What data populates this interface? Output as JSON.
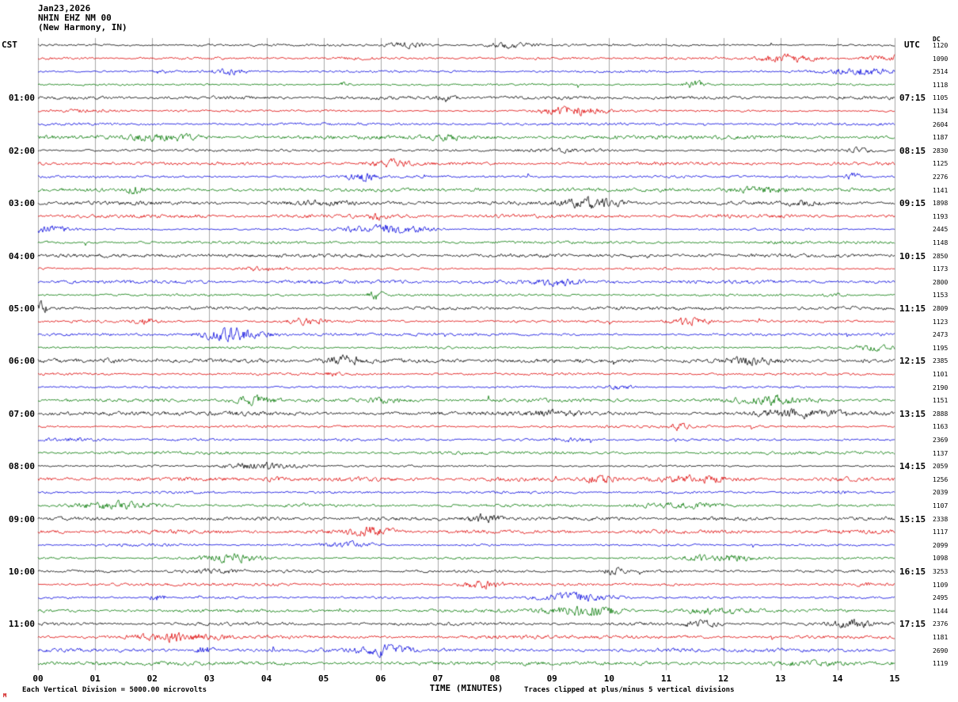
{
  "header": {
    "date": "Jan23,2026",
    "station": "NHIN EHZ NM 00",
    "location": "(New Harmony, IN)"
  },
  "axes": {
    "left_label": "CST",
    "right_label": "UTC",
    "dc_label": "DC",
    "x_axis_title": "TIME (MINUTES)",
    "x_ticks": [
      "00",
      "01",
      "02",
      "03",
      "04",
      "05",
      "06",
      "07",
      "08",
      "09",
      "10",
      "11",
      "12",
      "13",
      "14",
      "15"
    ]
  },
  "footer": {
    "left_note": "Each Vertical Division = 5000.00 microvolts",
    "right_note": "Traces clipped at plus/minus 5 vertical divisions",
    "corner_mark": "M"
  },
  "chart_data": {
    "type": "line",
    "subtype": "seismogram_helicorder",
    "title": "NHIN EHZ NM 00 (New Harmony, IN) Jan23,2026",
    "xlabel": "TIME (MINUTES)",
    "x_range_minutes": [
      0,
      15
    ],
    "minutes_per_trace": 15,
    "traces_per_hour": 4,
    "trace_count": 48,
    "grid": "vertical-minute-lines",
    "trace_color_cycle": [
      "#000000",
      "#dd0000",
      "#0000dd",
      "#007700"
    ],
    "vertical_division_microvolts": 5000.0,
    "clip_divisions": 5,
    "hour_labels": [
      {
        "cst": "01:00",
        "utc": "07:15",
        "trace_index": 4
      },
      {
        "cst": "02:00",
        "utc": "08:15",
        "trace_index": 8
      },
      {
        "cst": "03:00",
        "utc": "09:15",
        "trace_index": 12
      },
      {
        "cst": "04:00",
        "utc": "10:15",
        "trace_index": 16
      },
      {
        "cst": "05:00",
        "utc": "11:15",
        "trace_index": 20
      },
      {
        "cst": "06:00",
        "utc": "12:15",
        "trace_index": 24
      },
      {
        "cst": "07:00",
        "utc": "13:15",
        "trace_index": 28
      },
      {
        "cst": "08:00",
        "utc": "14:15",
        "trace_index": 32
      },
      {
        "cst": "09:00",
        "utc": "15:15",
        "trace_index": 36
      },
      {
        "cst": "10:00",
        "utc": "16:15",
        "trace_index": 40
      },
      {
        "cst": "11:00",
        "utc": "17:15",
        "trace_index": 44
      }
    ],
    "dc_values": [
      "1120",
      "1090",
      "2514",
      "1118",
      "1105",
      "1134",
      "2604",
      "1187",
      "2830",
      "1125",
      "2276",
      "1141",
      "1898",
      "1193",
      "2445",
      "1148",
      "2850",
      "1173",
      "2800",
      "1153",
      "2809",
      "1123",
      "2473",
      "1195",
      "2385",
      "1101",
      "2190",
      "1151",
      "2888",
      "1163",
      "2369",
      "1137",
      "2059",
      "1256",
      "2039",
      "1107",
      "2338",
      "1117",
      "2099",
      "1098",
      "3253",
      "1109",
      "2495",
      "1144",
      "2376",
      "1181",
      "2690",
      "1119"
    ]
  }
}
